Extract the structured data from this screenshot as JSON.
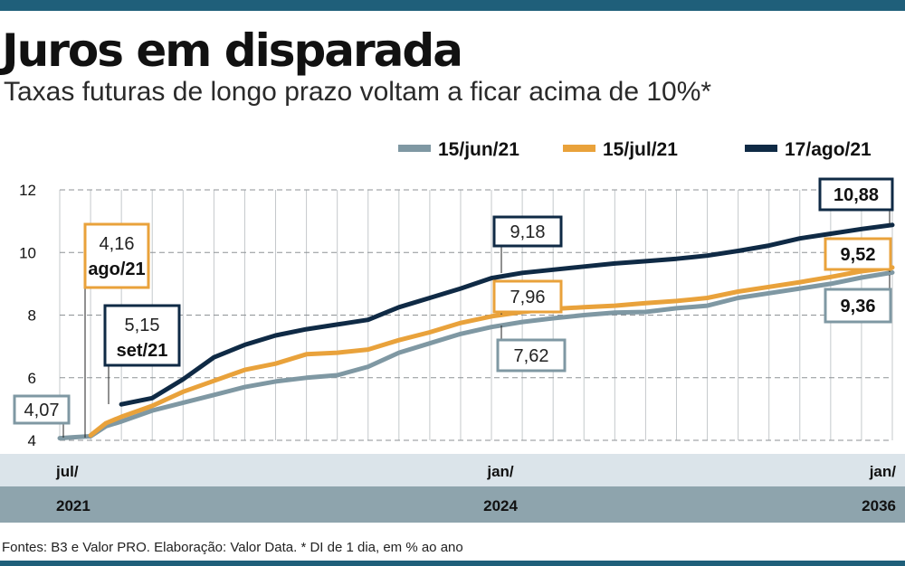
{
  "title": "Juros em disparada",
  "subtitle": "Taxas futuras de longo prazo voltam a ficar acima de 10%*",
  "footnote": "Fontes: B3 e Valor PRO. Elaboração: Valor Data. * DI de 1 dia, em % ao ano",
  "colors": {
    "jun": "#7f98a3",
    "jul": "#e9a23b",
    "ago": "#0f2a45",
    "band_light": "#dbe4ea",
    "band_dark": "#8ea4ad",
    "accent": "#1f5f7a"
  },
  "chart_data": {
    "type": "line",
    "title": "Juros em disparada",
    "subtitle": "Taxas futuras de longo prazo voltam a ficar acima de 10%*",
    "ylim": [
      4,
      12
    ],
    "yticks": [
      "12",
      "10",
      "8",
      "6",
      "4"
    ],
    "xlim": [
      0,
      27
    ],
    "x_ticks": [
      {
        "x": 0,
        "month": "jul/",
        "year": "2021"
      },
      {
        "x": 14,
        "month": "jan/",
        "year": "2024"
      },
      {
        "x": 27,
        "month": "jan/",
        "year": "2036"
      }
    ],
    "grid": true,
    "legend_position": "top-right",
    "series": [
      {
        "name": "15/jun/21",
        "color_key": "jun",
        "x": [
          0,
          0.5,
          1,
          1.5,
          2,
          3,
          4,
          5,
          6,
          7,
          8,
          9,
          10,
          11,
          12,
          13,
          14,
          15,
          16,
          17,
          18,
          19,
          20,
          21,
          22,
          23,
          24,
          25,
          26,
          27
        ],
        "values": [
          4.07,
          4.1,
          4.13,
          4.45,
          4.6,
          4.95,
          5.2,
          5.45,
          5.7,
          5.88,
          6.0,
          6.08,
          6.35,
          6.8,
          7.1,
          7.4,
          7.62,
          7.78,
          7.9,
          8.0,
          8.08,
          8.1,
          8.22,
          8.3,
          8.55,
          8.7,
          8.85,
          9.0,
          9.2,
          9.36
        ]
      },
      {
        "name": "15/jul/21",
        "color_key": "jul",
        "x": [
          1,
          1.5,
          2,
          3,
          4,
          5,
          6,
          7,
          8,
          9,
          10,
          11,
          12,
          13,
          14,
          15,
          16,
          17,
          18,
          19,
          20,
          21,
          22,
          23,
          24,
          25,
          26,
          27
        ],
        "values": [
          4.16,
          4.55,
          4.75,
          5.1,
          5.55,
          5.9,
          6.25,
          6.45,
          6.75,
          6.8,
          6.9,
          7.2,
          7.45,
          7.75,
          7.96,
          8.1,
          8.2,
          8.25,
          8.3,
          8.38,
          8.45,
          8.55,
          8.75,
          8.9,
          9.05,
          9.22,
          9.4,
          9.52
        ]
      },
      {
        "name": "17/ago/21",
        "color_key": "ago",
        "x": [
          2,
          3,
          4,
          5,
          6,
          7,
          8,
          9,
          10,
          11,
          12,
          13,
          14,
          15,
          16,
          17,
          18,
          19,
          20,
          21,
          22,
          23,
          24,
          25,
          26,
          27
        ],
        "values": [
          5.15,
          5.35,
          5.95,
          6.65,
          7.05,
          7.35,
          7.55,
          7.7,
          7.85,
          8.25,
          8.55,
          8.85,
          9.18,
          9.35,
          9.45,
          9.55,
          9.65,
          9.72,
          9.8,
          9.9,
          10.05,
          10.22,
          10.45,
          10.6,
          10.75,
          10.88
        ]
      }
    ],
    "annotations": [
      {
        "series": "15/jun/21",
        "x": 0,
        "y": 4.07,
        "text": "4,07",
        "date": ""
      },
      {
        "series": "15/jul/21",
        "x": 1,
        "y": 4.16,
        "text": "4,16",
        "date": "ago/21"
      },
      {
        "series": "17/ago/21",
        "x": 2,
        "y": 5.15,
        "text": "5,15",
        "date": "set/21"
      },
      {
        "series": "17/ago/21",
        "x": 14,
        "y": 9.18,
        "text": "9,18",
        "date": ""
      },
      {
        "series": "15/jul/21",
        "x": 14,
        "y": 7.96,
        "text": "7,96",
        "date": ""
      },
      {
        "series": "15/jun/21",
        "x": 14,
        "y": 7.62,
        "text": "7,62",
        "date": ""
      },
      {
        "series": "17/ago/21",
        "x": 27,
        "y": 10.88,
        "text": "10,88",
        "date": ""
      },
      {
        "series": "15/jul/21",
        "x": 27,
        "y": 9.52,
        "text": "9,52",
        "date": ""
      },
      {
        "series": "15/jun/21",
        "x": 27,
        "y": 9.36,
        "text": "9,36",
        "date": ""
      }
    ]
  }
}
